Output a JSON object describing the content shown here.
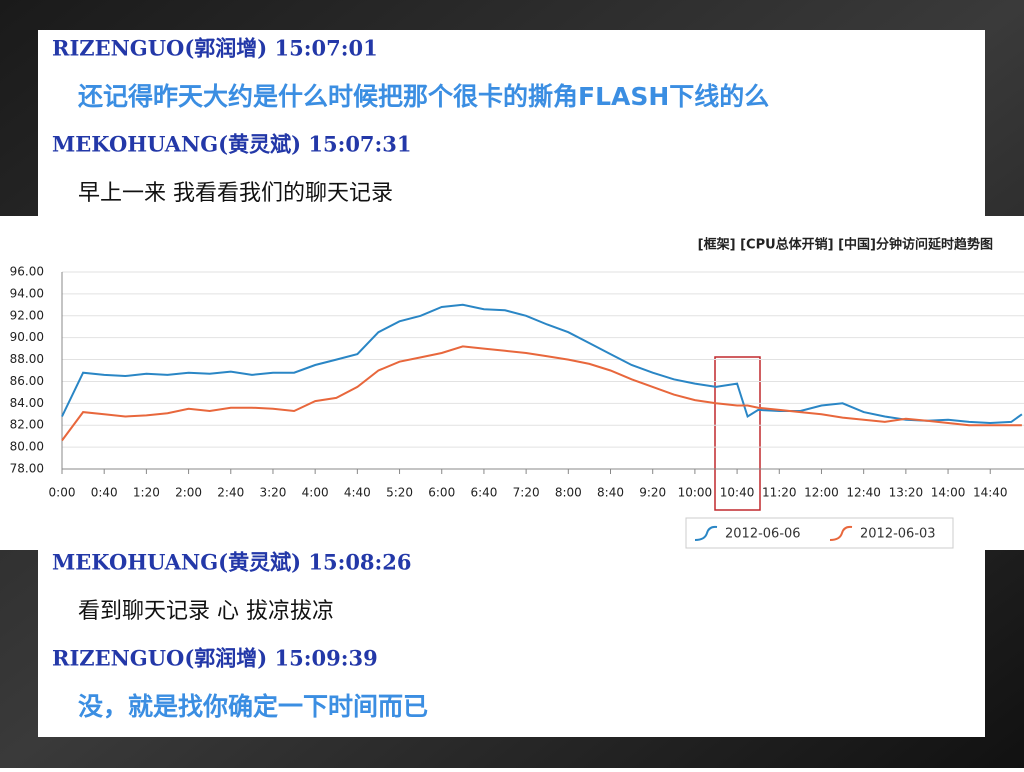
{
  "messages_top": [
    {
      "sender": "RIZENGUO(郭润增) 15:07:01",
      "text": "还记得昨天大约是什么时候把那个很卡的撕角FLASH下线的么"
    },
    {
      "sender": "MEKOHUANG(黄灵斌) 15:07:31",
      "text": "早上一来 我看看我们的聊天记录"
    }
  ],
  "messages_bottom": [
    {
      "sender": "MEKOHUANG(黄灵斌) 15:08:26",
      "text": "看到聊天记录 心 拔凉拔凉"
    },
    {
      "sender": "RIZENGUO(郭润增) 15:09:39",
      "text": "没，就是找你确定一下时间而已"
    }
  ],
  "chart_data": {
    "type": "line",
    "title": "[框架] [CPU总体开销] [中国]分钟访问延时趋势图",
    "x": [
      0,
      20,
      40,
      60,
      80,
      100,
      120,
      140,
      160,
      180,
      200,
      220,
      240,
      260,
      280,
      300,
      320,
      340,
      360,
      380,
      400,
      420,
      440,
      460,
      480,
      500,
      520,
      540,
      560,
      580,
      600,
      620,
      640,
      650,
      660,
      680,
      700,
      720,
      740,
      760,
      780,
      800,
      820,
      840,
      860,
      880,
      900,
      910
    ],
    "series": [
      {
        "name": "2012-06-06",
        "color": "#2a86c5",
        "values": [
          82.8,
          86.8,
          86.6,
          86.5,
          86.7,
          86.6,
          86.8,
          86.7,
          86.9,
          86.6,
          86.8,
          86.8,
          87.5,
          88.0,
          88.5,
          90.5,
          91.5,
          92.0,
          92.8,
          93.0,
          92.6,
          92.5,
          92.0,
          91.2,
          90.5,
          89.5,
          88.5,
          87.5,
          86.8,
          86.2,
          85.8,
          85.5,
          85.8,
          82.8,
          83.4,
          83.3,
          83.3,
          83.8,
          84.0,
          83.2,
          82.8,
          82.5,
          82.4,
          82.5,
          82.3,
          82.2,
          82.3,
          83.0
        ]
      },
      {
        "name": "2012-06-03",
        "color": "#e8673c",
        "values": [
          80.6,
          83.2,
          83.0,
          82.8,
          82.9,
          83.1,
          83.5,
          83.3,
          83.6,
          83.6,
          83.5,
          83.3,
          84.2,
          84.5,
          85.5,
          87.0,
          87.8,
          88.2,
          88.6,
          89.2,
          89.0,
          88.8,
          88.6,
          88.3,
          88.0,
          87.6,
          87.0,
          86.2,
          85.5,
          84.8,
          84.3,
          84.0,
          83.8,
          83.8,
          83.6,
          83.4,
          83.2,
          83.0,
          82.7,
          82.5,
          82.3,
          82.6,
          82.4,
          82.2,
          82.0,
          82.0,
          82.0,
          82.0
        ]
      }
    ],
    "xlim": [
      0,
      912
    ],
    "xticks": [
      {
        "value": 0,
        "label": "0:00"
      },
      {
        "value": 40,
        "label": "0:40"
      },
      {
        "value": 80,
        "label": "1:20"
      },
      {
        "value": 120,
        "label": "2:00"
      },
      {
        "value": 160,
        "label": "2:40"
      },
      {
        "value": 200,
        "label": "3:20"
      },
      {
        "value": 240,
        "label": "4:00"
      },
      {
        "value": 280,
        "label": "4:40"
      },
      {
        "value": 320,
        "label": "5:20"
      },
      {
        "value": 360,
        "label": "6:00"
      },
      {
        "value": 400,
        "label": "6:40"
      },
      {
        "value": 440,
        "label": "7:20"
      },
      {
        "value": 480,
        "label": "8:00"
      },
      {
        "value": 520,
        "label": "8:40"
      },
      {
        "value": 560,
        "label": "9:20"
      },
      {
        "value": 600,
        "label": "10:00"
      },
      {
        "value": 640,
        "label": "10:40"
      },
      {
        "value": 680,
        "label": "11:20"
      },
      {
        "value": 720,
        "label": "12:00"
      },
      {
        "value": 760,
        "label": "12:40"
      },
      {
        "value": 800,
        "label": "13:20"
      },
      {
        "value": 840,
        "label": "14:00"
      },
      {
        "value": 880,
        "label": "14:40"
      }
    ],
    "ylim": [
      78,
      96
    ],
    "yticks": [
      {
        "value": 78,
        "label": "78.00"
      },
      {
        "value": 80,
        "label": "80.00"
      },
      {
        "value": 82,
        "label": "82.00"
      },
      {
        "value": 84,
        "label": "84.00"
      },
      {
        "value": 86,
        "label": "86.00"
      },
      {
        "value": 88,
        "label": "88.00"
      },
      {
        "value": 90,
        "label": "90.00"
      },
      {
        "value": 92,
        "label": "92.00"
      },
      {
        "value": 94,
        "label": "94.00"
      },
      {
        "value": 96,
        "label": "96.00"
      }
    ],
    "grid": true
  }
}
